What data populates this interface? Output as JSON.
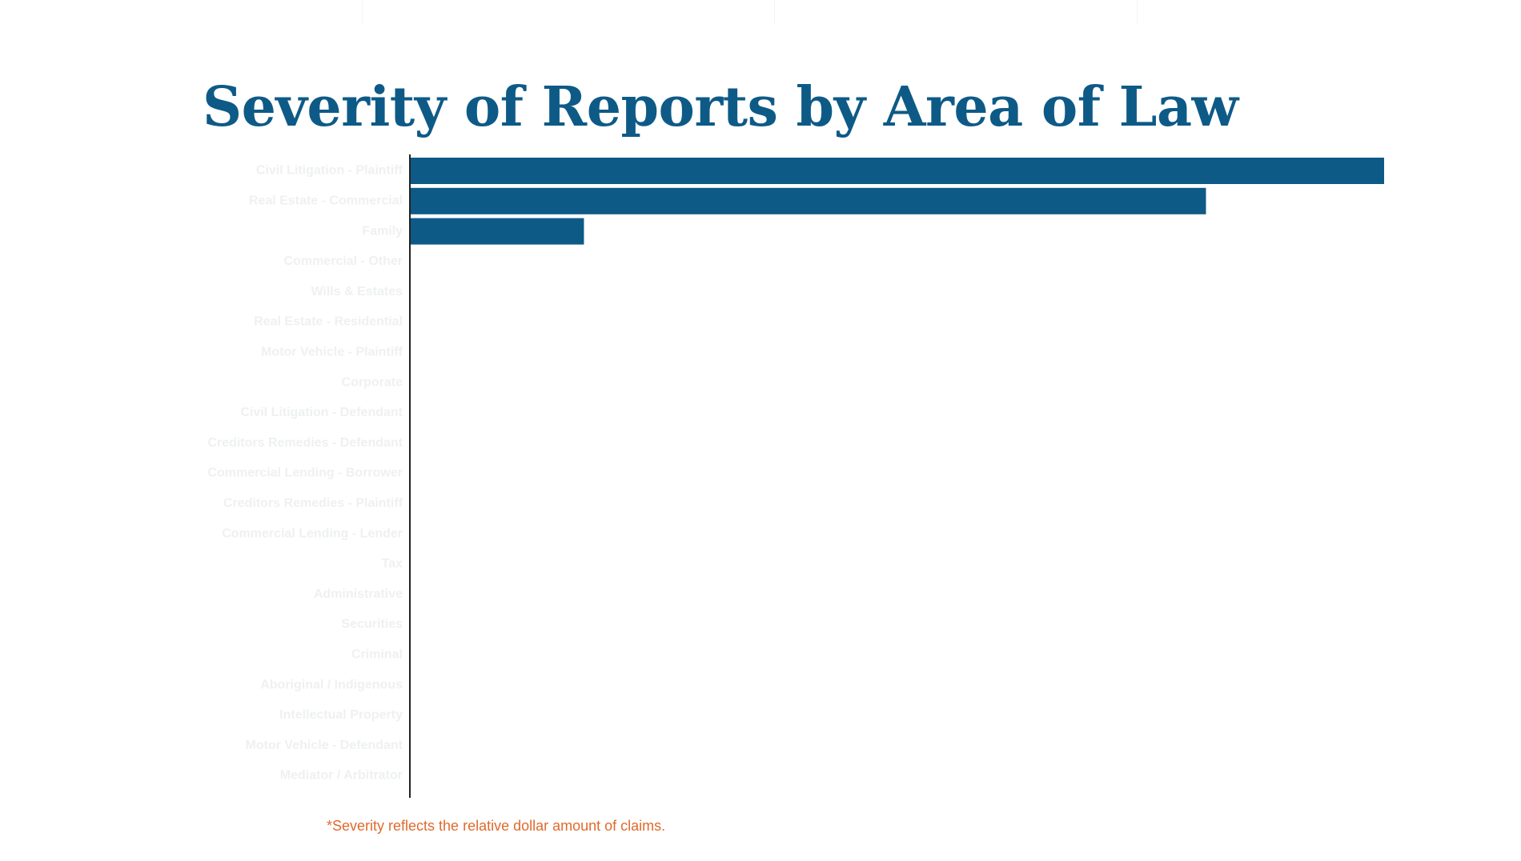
{
  "colors": {
    "title": "#0e5a87",
    "bar": "#0e5a87",
    "axis": "#222222",
    "category_label": "#eef0f2",
    "footnote": "#e06a2c"
  },
  "chart_data": {
    "type": "bar",
    "orientation": "horizontal",
    "title": "Severity of Reports by Area of Law",
    "categories": [
      "Civil Litigation - Plaintiff",
      "Real Estate - Commercial",
      "Family",
      "Commercial - Other",
      "Wills & Estates",
      "Real Estate - Residential",
      "Motor Vehicle - Plaintiff",
      "Corporate",
      "Civil Litigation - Defendant",
      "Creditors Remedies - Defendant",
      "Commercial Lending - Borrower",
      "Creditors Remedies - Plaintiff",
      "Commercial Lending - Lender",
      "Tax",
      "Administrative",
      "Securities",
      "Criminal",
      "Aboriginal / Indigenous",
      "Intellectual Property",
      "Motor Vehicle - Defendant",
      "Mediator / Arbitrator"
    ],
    "values": [
      100,
      81.7,
      17.8,
      0,
      0,
      0,
      0,
      0,
      0,
      0,
      0,
      0,
      0,
      0,
      0,
      0,
      0,
      0,
      0,
      0,
      0
    ],
    "xlim": [
      0,
      100
    ],
    "grid": false,
    "legend": "none",
    "footnote": "*Severity reflects the relative dollar amount of claims."
  }
}
